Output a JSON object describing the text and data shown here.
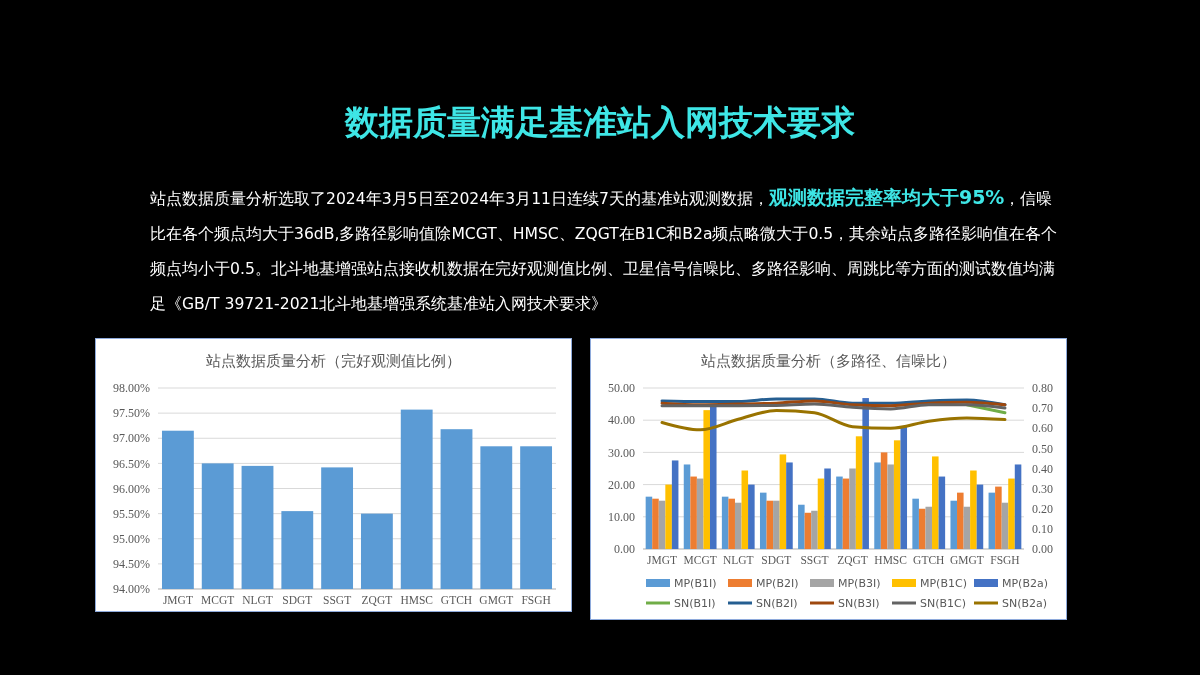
{
  "chart_data": [
    {
      "type": "other",
      "title": "数据质量满足基准站入网技术要求",
      "annotations": [
        "站点数据质量分析选取了2024年3月5日至2024年3月11日连续7天的基准站观测数据，",
        "观测数据完整率均大于95%",
        "，信噪比在各个频点均大于36dB,多路径影响值除MCGT、HMSC、ZQGT在B1C和B2a频点略微大于0.5，其余站点多路径影响值在各个频点均小于0.5。北斗地基增强站点接收机数据在完好观测值比例、卫星信号信噪比、多路径影响、周跳比等方面的测试数值均满足《GB/T 39721-2021北斗地基增强系统基准站入网技术要求》"
      ]
    },
    {
      "type": "bar",
      "title": "站点数据质量分析（完好观测值比例）",
      "categories": [
        "JMGT",
        "MCGT",
        "NLGT",
        "SDGT",
        "SSGT",
        "ZQGT",
        "HMSC",
        "GTCH",
        "GMGT",
        "FSGH"
      ],
      "values": [
        97.15,
        96.5,
        96.45,
        95.55,
        96.42,
        95.5,
        97.57,
        97.18,
        96.84,
        96.84
      ],
      "color": "#5b9bd5",
      "ylim": [
        94,
        98
      ],
      "yticks": [
        {
          "value": 94,
          "label": "94.00%"
        },
        {
          "value": 94.5,
          "label": "94.50%"
        },
        {
          "value": 95,
          "label": "95.00%"
        },
        {
          "value": 95.5,
          "label": "95.50%"
        },
        {
          "value": 96,
          "label": "96.00%"
        },
        {
          "value": 96.5,
          "label": "96.50%"
        },
        {
          "value": 97,
          "label": "97.00%"
        },
        {
          "value": 97.5,
          "label": "97.50%"
        },
        {
          "value": 98,
          "label": "98.00%"
        }
      ],
      "grid": "y"
    },
    {
      "type": "bar",
      "title": "站点数据质量分析（多路径、信噪比）",
      "categories": [
        "JMGT",
        "MCGT",
        "NLGT",
        "SDGT",
        "SSGT",
        "ZQGT",
        "HMSC",
        "GTCH",
        "GMGT",
        "FSGH"
      ],
      "ylim": [
        0,
        50
      ],
      "yticks": [
        {
          "value": 0,
          "label": "0.00"
        },
        {
          "value": 10,
          "label": "10.00"
        },
        {
          "value": 20,
          "label": "20.00"
        },
        {
          "value": 30,
          "label": "30.00"
        },
        {
          "value": 40,
          "label": "40.00"
        },
        {
          "value": 50,
          "label": "50.00"
        }
      ],
      "y2lim": [
        0,
        0.8
      ],
      "y2ticks": [
        {
          "value": 0,
          "label": "0.00"
        },
        {
          "value": 0.1,
          "label": "0.10"
        },
        {
          "value": 0.2,
          "label": "0.20"
        },
        {
          "value": 0.3,
          "label": "0.30"
        },
        {
          "value": 0.4,
          "label": "0.40"
        },
        {
          "value": 0.5,
          "label": "0.50"
        },
        {
          "value": 0.6,
          "label": "0.60"
        },
        {
          "value": 0.7,
          "label": "0.70"
        },
        {
          "value": 0.8,
          "label": "0.80"
        }
      ],
      "grid": "y",
      "legend": "bottom",
      "series": [
        {
          "name": "MP(B1I)",
          "type": "bar",
          "axis": "y2",
          "color": "#5b9bd5",
          "values": [
            0.26,
            0.42,
            0.26,
            0.28,
            0.22,
            0.36,
            0.43,
            0.25,
            0.24,
            0.28
          ]
        },
        {
          "name": "MP(B2I)",
          "type": "bar",
          "axis": "y2",
          "color": "#ed7d31",
          "values": [
            0.25,
            0.36,
            0.25,
            0.24,
            0.18,
            0.35,
            0.48,
            0.2,
            0.28,
            0.31
          ]
        },
        {
          "name": "MP(B3I)",
          "type": "bar",
          "axis": "y2",
          "color": "#a5a5a5",
          "values": [
            0.24,
            0.35,
            0.23,
            0.24,
            0.19,
            0.4,
            0.42,
            0.21,
            0.21,
            0.23
          ]
        },
        {
          "name": "MP(B1C)",
          "type": "bar",
          "axis": "y2",
          "color": "#ffc000",
          "values": [
            0.32,
            0.69,
            0.39,
            0.47,
            0.35,
            0.56,
            0.54,
            0.46,
            0.39,
            0.35
          ]
        },
        {
          "name": "MP(B2a)",
          "type": "bar",
          "axis": "y2",
          "color": "#4472c4",
          "values": [
            0.44,
            0.71,
            0.32,
            0.43,
            0.4,
            0.75,
            0.61,
            0.36,
            0.32,
            0.42
          ]
        },
        {
          "name": "SN(B1I)",
          "type": "line",
          "color": "#70ad47",
          "values": [
            null,
            null,
            null,
            null,
            null,
            null,
            null,
            null,
            44.8,
            42.3
          ]
        },
        {
          "name": "SN(B2I)",
          "type": "line",
          "color": "#255e91",
          "values": [
            46.0,
            45.8,
            45.8,
            46.6,
            46.6,
            45.3,
            45.3,
            46.0,
            46.3,
            44.8
          ]
        },
        {
          "name": "SN(B3I)",
          "type": "line",
          "color": "#9e480e",
          "values": [
            45.3,
            44.8,
            45.0,
            45.3,
            46.0,
            44.8,
            44.5,
            45.3,
            45.6,
            44.8
          ]
        },
        {
          "name": "SN(B1C)",
          "type": "line",
          "color": "#636363",
          "values": [
            44.5,
            44.5,
            44.5,
            44.6,
            45.0,
            44.0,
            43.5,
            44.8,
            44.8,
            43.8
          ]
        },
        {
          "name": "SN(B2a)",
          "type": "line",
          "color": "#997300",
          "values": [
            39.3,
            37.0,
            40.3,
            43.0,
            42.3,
            38.0,
            37.5,
            39.7,
            40.7,
            40.2
          ]
        }
      ]
    }
  ]
}
